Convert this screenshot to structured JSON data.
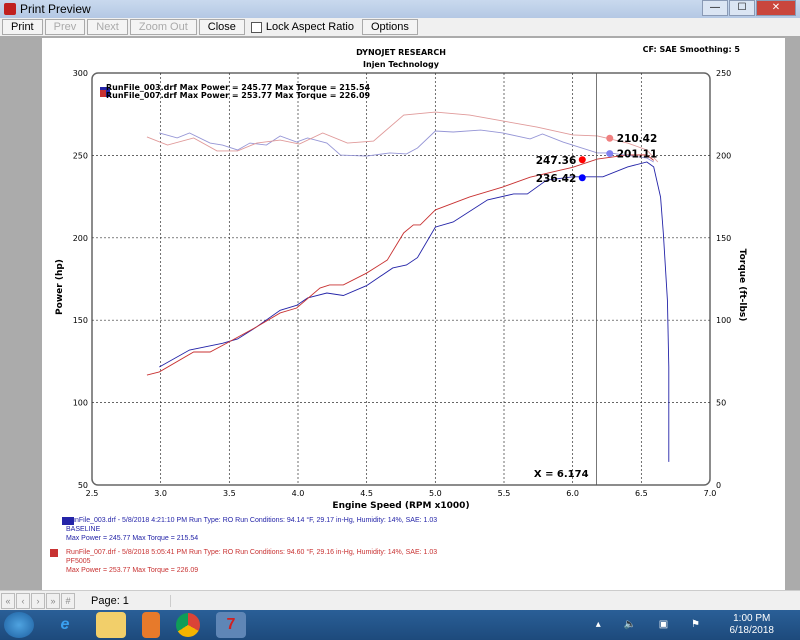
{
  "window": {
    "title": "Print Preview",
    "minimize": "—",
    "maximize": "☐",
    "close": "✕"
  },
  "toolbar": {
    "print": "Print",
    "prev": "Prev",
    "next": "Next",
    "zoom_out": "Zoom Out",
    "close": "Close",
    "lock_aspect": "Lock Aspect Ratio",
    "lock_aspect_checked": false,
    "options": "Options"
  },
  "header": {
    "company": "DYNOJET RESEARCH",
    "subtitle": "Injen Technology",
    "cf": "CF: SAE  Smoothing: 5"
  },
  "legend": [
    {
      "file": "RunFile_003.drf",
      "text": "RunFile_003.drf Max Power = 245.77    Max Torque = 215.54",
      "color": "#2424a8"
    },
    {
      "file": "RunFile_007.drf",
      "text": "RunFile_007.drf Max Power = 253.77    Max Torque = 226.09",
      "color": "#c83232"
    }
  ],
  "chart_data": {
    "type": "line",
    "xlabel": "Engine Speed (RPM x1000)",
    "ylabel": "Power (hp)",
    "y2label": "Torque (ft-lbs)",
    "xlim": [
      2.5,
      7.0
    ],
    "ylim": [
      50,
      300
    ],
    "y2lim": [
      0,
      250
    ],
    "xticks": [
      "2.5",
      "3.0",
      "3.5",
      "4.0",
      "4.5",
      "5.0",
      "5.5",
      "6.0",
      "6.5",
      "7.0"
    ],
    "yticks": [
      "50",
      "100",
      "150",
      "200",
      "250",
      "300"
    ],
    "y2ticks": [
      "0",
      "50",
      "100",
      "150",
      "200",
      "250"
    ],
    "grid": true,
    "series": [
      {
        "name": "RunFile_003.drf Power",
        "axis": "left",
        "color": "#2424a8",
        "x": [
          2.99,
          3.21,
          3.45,
          3.56,
          3.7,
          3.87,
          3.99,
          4.07,
          4.21,
          4.33,
          4.5,
          4.69,
          4.79,
          4.87,
          5.0,
          5.13,
          5.38,
          5.57,
          5.67,
          5.81,
          6.0,
          6.22,
          6.4,
          6.54,
          6.59,
          6.64,
          6.66,
          6.69,
          6.7,
          6.7
        ],
        "y": [
          121.6,
          131.9,
          136,
          138.6,
          146,
          156,
          159,
          163.5,
          166.5,
          165,
          171,
          181.7,
          183.5,
          188,
          206.5,
          209.6,
          223,
          226.6,
          226.6,
          235,
          237,
          237,
          243,
          246,
          243,
          224.7,
          203,
          162,
          121.6,
          64
        ]
      },
      {
        "name": "RunFile_007.drf Power",
        "axis": "left",
        "color": "#c83232",
        "x": [
          2.9,
          2.99,
          3.24,
          3.36,
          3.48,
          3.7,
          3.87,
          3.99,
          4.16,
          4.23,
          4.33,
          4.5,
          4.65,
          4.77,
          4.84,
          4.89,
          5.0,
          5.25,
          5.49,
          5.69,
          6.0,
          6.18,
          6.4,
          6.54,
          6.59
        ],
        "y": [
          116.7,
          118.6,
          130.7,
          130.7,
          136,
          146,
          154.4,
          157.4,
          169.5,
          171.4,
          171.4,
          178.6,
          186.5,
          203,
          207.8,
          207.8,
          216.9,
          224.8,
          230.8,
          236.8,
          242.8,
          247.8,
          250.3,
          250.3,
          247
        ]
      },
      {
        "name": "RunFile_003.drf Torque",
        "axis": "right",
        "color": "#9696d6",
        "x": [
          2.99,
          3.12,
          3.21,
          3.36,
          3.45,
          3.56,
          3.65,
          3.77,
          3.87,
          3.99,
          4.07,
          4.21,
          4.31,
          4.5,
          4.67,
          4.79,
          4.87,
          5.0,
          5.13,
          5.33,
          5.49,
          5.69,
          5.78,
          5.93,
          6.18,
          6.27,
          6.54,
          6.59
        ],
        "y": [
          213.6,
          210.6,
          213.6,
          207.5,
          206.3,
          203.3,
          207.5,
          206.3,
          211.8,
          208.1,
          210.6,
          207.5,
          200.2,
          199.6,
          201.5,
          200.9,
          204.5,
          214.8,
          214.2,
          215.4,
          213.6,
          210,
          213,
          208.1,
          201.5,
          201.5,
          198.4,
          196
        ]
      },
      {
        "name": "RunFile_007.drf Torque",
        "axis": "right",
        "color": "#e09a9a",
        "x": [
          2.9,
          3.05,
          3.24,
          3.41,
          3.56,
          3.7,
          3.87,
          4.01,
          4.18,
          4.36,
          4.55,
          4.77,
          5.0,
          5.25,
          5.49,
          5.74,
          6.0,
          6.18,
          6.4,
          6.54,
          6.62
        ],
        "y": [
          211.2,
          206.3,
          210.6,
          202.7,
          202.7,
          207.5,
          209.3,
          206.9,
          213.6,
          207.5,
          208.7,
          224.5,
          226.3,
          224.5,
          220.9,
          217.2,
          212.4,
          211.8,
          207.5,
          203.3,
          196
        ]
      }
    ],
    "markers": [
      {
        "label": "247.36",
        "x": 6.07,
        "y": 247.36,
        "axis": "left",
        "color": "#ff0000"
      },
      {
        "label": "236.42",
        "x": 6.07,
        "y": 236.42,
        "axis": "left",
        "color": "#0000ff"
      },
      {
        "label": "210.42",
        "x": 6.27,
        "y": 210.42,
        "axis": "right",
        "color": "#f08080"
      },
      {
        "label": "201.11",
        "x": 6.27,
        "y": 201.11,
        "axis": "right",
        "color": "#8080f0"
      }
    ],
    "cursor": {
      "x": 6.174,
      "label": "X = 6.174"
    }
  },
  "footer": [
    {
      "line1": "RunFile_003.drf - 5/8/2018 4:21:10 PM  Run Type: RO  Run Conditions: 94.14 °F, 29.17 in-Hg,  Humidity:  14%, SAE: 1.03",
      "line2": "BASELINE",
      "line3": "Max Power = 245.77  Max Torque = 215.54",
      "color": "#2424a8"
    },
    {
      "line1": "RunFile_007.drf - 5/8/2018 5:05:41 PM  Run Type: RO  Run Conditions: 94.60 °F, 29.16 in-Hg,  Humidity:  14%, SAE: 1.03",
      "line2": "PF5005",
      "line3": "Max Power = 253.77  Max Torque = 226.09",
      "color": "#c83232"
    }
  ],
  "status": {
    "page": "Page: 1",
    "nav": [
      "«",
      "‹",
      "›",
      "»",
      "#"
    ]
  },
  "taskbar": {
    "time": "1:00 PM",
    "date": "6/18/2018",
    "tray": "▴ 🔈 ▣ ⚑",
    "apps": [
      "start-orb",
      "internet-explorer",
      "file-explorer",
      "media-player",
      "chrome",
      "dynojet"
    ]
  }
}
